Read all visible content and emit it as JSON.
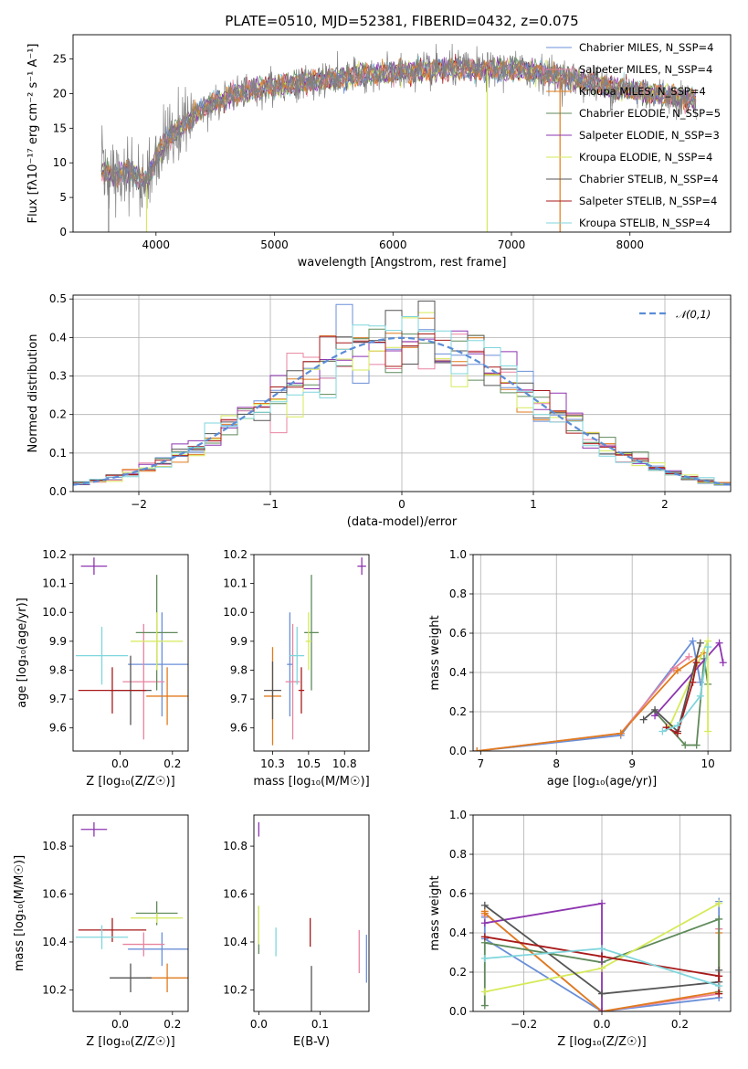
{
  "colors": [
    "#6a8fd8",
    "#e884a0",
    "#e07b1d",
    "#5f8a5a",
    "#8e35b0",
    "#d6ea5a",
    "#555555",
    "#a81a1a",
    "#7fd6dc"
  ],
  "chart_data": [
    {
      "id": "spectrum",
      "type": "line",
      "title": "PLATE=0510, MJD=52381, FIBERID=0432, z=0.075",
      "xlabel": "wavelength [Angstrom, rest frame]",
      "ylabel": "Flux [fλ10⁻¹⁷ erg cm⁻² s⁻¹ A⁻¹]",
      "xlim": [
        3300,
        8850
      ],
      "ylim": [
        0,
        28.5
      ],
      "xticks": [
        4000,
        5000,
        6000,
        7000,
        8000
      ],
      "yticks": [
        0,
        5,
        10,
        15,
        20,
        25
      ],
      "observed_color": "#808080",
      "legend_position": "right",
      "legend": [
        "Chabrier MILES, N_SSP=4",
        "Salpeter MILES, N_SSP=4",
        "Kroupa MILES, N_SSP=4",
        "Chabrier ELODIE, N_SSP=5",
        "Salpeter ELODIE, N_SSP=3",
        "Kroupa ELODIE, N_SSP=4",
        "Chabrier STELIB, N_SSP=4",
        "Salpeter STELIB, N_SSP=4",
        "Kroupa STELIB, N_SSP=4"
      ],
      "continuum": [
        [
          3540,
          9
        ],
        [
          3650,
          8
        ],
        [
          3750,
          9
        ],
        [
          3850,
          8
        ],
        [
          3920,
          7
        ],
        [
          4000,
          11
        ],
        [
          4100,
          13.5
        ],
        [
          4200,
          15
        ],
        [
          4300,
          16.5
        ],
        [
          4400,
          18
        ],
        [
          4600,
          19.5
        ],
        [
          4800,
          20.5
        ],
        [
          5000,
          21
        ],
        [
          5200,
          21.5
        ],
        [
          5400,
          22
        ],
        [
          5600,
          22.3
        ],
        [
          5800,
          22.8
        ],
        [
          6000,
          23
        ],
        [
          6200,
          23.2
        ],
        [
          6400,
          23.5
        ],
        [
          6600,
          23.6
        ],
        [
          6800,
          23.3
        ],
        [
          7000,
          23.5
        ],
        [
          7200,
          23.2
        ],
        [
          7400,
          22.5
        ],
        [
          7600,
          21.8
        ],
        [
          7800,
          21
        ],
        [
          8000,
          20.5
        ],
        [
          8200,
          20
        ],
        [
          8400,
          19.5
        ],
        [
          8560,
          19
        ]
      ]
    },
    {
      "id": "residuals",
      "type": "histogram",
      "xlabel": "(data-model)/error",
      "ylabel": "Normed distribution",
      "xlim": [
        -2.5,
        2.5
      ],
      "ylim": [
        0,
        0.51
      ],
      "xticks": [
        -2,
        -1,
        0,
        1,
        2
      ],
      "yticks": [
        0.0,
        0.1,
        0.2,
        0.3,
        0.4,
        0.5
      ],
      "bins": 40,
      "bin_width": 0.125,
      "grid": true,
      "legend": "𝒩(0,1)",
      "legend_position": "top-right",
      "gaussian_color": "#5b8dd6"
    },
    {
      "id": "age-vs-z",
      "type": "errorbar",
      "xlabel": "Z [log₁₀(Z/Z☉)]",
      "ylabel": "age  [log₁₀(age/yr)]",
      "xlim": [
        -0.18,
        0.26
      ],
      "ylim": [
        9.52,
        10.2
      ],
      "xticks": [
        0.0,
        0.2
      ],
      "yticks": [
        9.6,
        9.7,
        9.8,
        9.9,
        10.0,
        10.1,
        10.2
      ],
      "points": [
        {
          "x": 0.16,
          "y": 9.82,
          "xerr": 0.13,
          "yerr": 0.18,
          "c": 0
        },
        {
          "x": 0.09,
          "y": 9.76,
          "xerr": 0.08,
          "yerr": 0.2,
          "c": 1
        },
        {
          "x": 0.18,
          "y": 9.71,
          "xerr": 0.08,
          "yerr": 0.1,
          "c": 2
        },
        {
          "x": 0.14,
          "y": 9.93,
          "xerr": 0.08,
          "yerr": 0.2,
          "c": 3
        },
        {
          "x": -0.1,
          "y": 10.16,
          "xerr": 0.05,
          "yerr": 0.03,
          "c": 4
        },
        {
          "x": 0.14,
          "y": 9.9,
          "xerr": 0.1,
          "yerr": 0.1,
          "c": 5
        },
        {
          "x": 0.04,
          "y": 9.73,
          "xerr": 0.08,
          "yerr": 0.12,
          "c": 6
        },
        {
          "x": -0.03,
          "y": 9.73,
          "xerr": 0.13,
          "yerr": 0.08,
          "c": 7
        },
        {
          "x": -0.07,
          "y": 9.85,
          "xerr": 0.1,
          "yerr": 0.1,
          "c": 8
        }
      ]
    },
    {
      "id": "age-vs-mass",
      "type": "errorbar",
      "xlabel": "mass [log₁₀(M/M☉)]",
      "ylabel": "",
      "xlim": [
        10.12,
        10.92
      ],
      "ylim": [
        9.52,
        10.2
      ],
      "xticks": [
        10.25,
        10.5,
        10.75
      ],
      "yticks": [
        9.6,
        9.7,
        9.8,
        9.9,
        10.0,
        10.1,
        10.2
      ],
      "points": [
        {
          "x": 10.37,
          "y": 9.82,
          "xerr": 0.02,
          "yerr": 0.18,
          "c": 0
        },
        {
          "x": 10.39,
          "y": 9.76,
          "xerr": 0.05,
          "yerr": 0.2,
          "c": 1
        },
        {
          "x": 10.25,
          "y": 9.71,
          "xerr": 0.06,
          "yerr": 0.17,
          "c": 2
        },
        {
          "x": 10.52,
          "y": 9.93,
          "xerr": 0.05,
          "yerr": 0.2,
          "c": 3
        },
        {
          "x": 10.87,
          "y": 10.16,
          "xerr": 0.03,
          "yerr": 0.03,
          "c": 4
        },
        {
          "x": 10.5,
          "y": 9.9,
          "xerr": 0.02,
          "yerr": 0.1,
          "c": 5
        },
        {
          "x": 10.25,
          "y": 9.73,
          "xerr": 0.06,
          "yerr": 0.1,
          "c": 6
        },
        {
          "x": 10.45,
          "y": 9.73,
          "xerr": 0.02,
          "yerr": 0.08,
          "c": 7
        },
        {
          "x": 10.42,
          "y": 9.85,
          "xerr": 0.05,
          "yerr": 0.1,
          "c": 8
        }
      ]
    },
    {
      "id": "mass-weight-vs-age",
      "type": "line",
      "xlabel": "age  [log₁₀(age/yr)]",
      "ylabel": "mass weight",
      "xlim": [
        6.9,
        10.3
      ],
      "ylim": [
        0,
        1.0
      ],
      "xticks": [
        7,
        8,
        9,
        10
      ],
      "yticks": [
        0.0,
        0.2,
        0.4,
        0.6,
        0.8,
        1.0
      ],
      "grid": true,
      "series": [
        {
          "c": 0,
          "points": [
            [
              6.95,
              0.0
            ],
            [
              8.85,
              0.08
            ],
            [
              9.8,
              0.56
            ],
            [
              9.9,
              0.35
            ]
          ]
        },
        {
          "c": 1,
          "points": [
            [
              6.95,
              0.0
            ],
            [
              8.85,
              0.09
            ],
            [
              9.55,
              0.42
            ],
            [
              9.75,
              0.48
            ]
          ]
        },
        {
          "c": 2,
          "points": [
            [
              6.95,
              0.0
            ],
            [
              8.85,
              0.09
            ],
            [
              9.6,
              0.41
            ],
            [
              9.95,
              0.5
            ]
          ]
        },
        {
          "c": 3,
          "points": [
            [
              9.3,
              0.2
            ],
            [
              9.7,
              0.03
            ],
            [
              9.85,
              0.03
            ],
            [
              9.95,
              0.47
            ],
            [
              10.0,
              0.34
            ]
          ]
        },
        {
          "c": 4,
          "points": [
            [
              9.3,
              0.18
            ],
            [
              10.15,
              0.55
            ],
            [
              10.2,
              0.45
            ]
          ]
        },
        {
          "c": 5,
          "points": [
            [
              9.5,
              0.13
            ],
            [
              10.0,
              0.56
            ],
            [
              10.0,
              0.1
            ]
          ]
        },
        {
          "c": 6,
          "points": [
            [
              9.15,
              0.16
            ],
            [
              9.3,
              0.21
            ],
            [
              9.6,
              0.1
            ],
            [
              9.9,
              0.55
            ]
          ]
        },
        {
          "c": 7,
          "points": [
            [
              9.45,
              0.12
            ],
            [
              9.6,
              0.09
            ],
            [
              9.8,
              0.35
            ],
            [
              9.85,
              0.45
            ]
          ]
        },
        {
          "c": 8,
          "points": [
            [
              9.4,
              0.1
            ],
            [
              9.6,
              0.13
            ],
            [
              9.9,
              0.28
            ],
            [
              10.0,
              0.53
            ]
          ]
        }
      ]
    },
    {
      "id": "mass-vs-z",
      "type": "errorbar",
      "xlabel": "Z [log₁₀(Z/Z☉)]",
      "ylabel": "mass [log₁₀(M/M☉)]",
      "xlim": [
        -0.18,
        0.26
      ],
      "ylim": [
        10.11,
        10.93
      ],
      "xticks": [
        0.0,
        0.2
      ],
      "yticks": [
        10.2,
        10.4,
        10.6,
        10.8
      ],
      "points": [
        {
          "x": 0.16,
          "y": 10.37,
          "xerr": 0.13,
          "yerr": 0.07,
          "c": 0
        },
        {
          "x": 0.09,
          "y": 10.39,
          "xerr": 0.08,
          "yerr": 0.05,
          "c": 1
        },
        {
          "x": 0.18,
          "y": 10.25,
          "xerr": 0.08,
          "yerr": 0.06,
          "c": 2
        },
        {
          "x": 0.14,
          "y": 10.52,
          "xerr": 0.08,
          "yerr": 0.05,
          "c": 3
        },
        {
          "x": -0.1,
          "y": 10.87,
          "xerr": 0.05,
          "yerr": 0.03,
          "c": 4
        },
        {
          "x": 0.14,
          "y": 10.5,
          "xerr": 0.1,
          "yerr": 0.02,
          "c": 5
        },
        {
          "x": 0.04,
          "y": 10.25,
          "xerr": 0.08,
          "yerr": 0.06,
          "c": 6
        },
        {
          "x": -0.03,
          "y": 10.45,
          "xerr": 0.13,
          "yerr": 0.05,
          "c": 7
        },
        {
          "x": -0.07,
          "y": 10.42,
          "xerr": 0.1,
          "yerr": 0.05,
          "c": 8
        }
      ]
    },
    {
      "id": "mass-vs-ebv",
      "type": "errorbar",
      "xlabel": "E(B-V)",
      "ylabel": "",
      "xlim": [
        -0.004,
        0.09
      ],
      "ylim": [
        10.11,
        10.93
      ],
      "xticks": [
        0.0,
        0.05
      ],
      "yticks": [
        10.2,
        10.4,
        10.6,
        10.8
      ],
      "points": [
        {
          "x": 0.088,
          "y": 10.33,
          "xerr": 0.0,
          "yerr": 0.1,
          "c": 0
        },
        {
          "x": 0.082,
          "y": 10.36,
          "xerr": 0.0,
          "yerr": 0.09,
          "c": 1
        },
        {
          "x": 0.0,
          "y": 10.45,
          "xerr": 0.0,
          "yerr": 0.1,
          "c": 3
        },
        {
          "x": 0.0,
          "y": 10.87,
          "xerr": 0.0,
          "yerr": 0.03,
          "c": 4
        },
        {
          "x": 0.0,
          "y": 10.47,
          "xerr": 0.0,
          "yerr": 0.08,
          "c": 5
        },
        {
          "x": 0.043,
          "y": 10.2,
          "xerr": 0.0,
          "yerr": 0.1,
          "c": 6
        },
        {
          "x": 0.042,
          "y": 10.44,
          "xerr": 0.0,
          "yerr": 0.06,
          "c": 7
        },
        {
          "x": 0.014,
          "y": 10.4,
          "xerr": 0.0,
          "yerr": 0.06,
          "c": 8
        }
      ]
    },
    {
      "id": "mass-weight-vs-z",
      "type": "line",
      "xlabel": "Z [log₁₀(Z/Z☉)]",
      "ylabel": "mass weight",
      "xlim": [
        -0.33,
        0.33
      ],
      "ylim": [
        0,
        1.0
      ],
      "xticks": [
        -0.2,
        0.0,
        0.2
      ],
      "yticks": [
        0.0,
        0.2,
        0.4,
        0.6,
        0.8,
        1.0
      ],
      "grid": true,
      "series": [
        {
          "c": 0,
          "points": [
            [
              -0.3,
              0.48
            ],
            [
              -0.3,
              0.37
            ],
            [
              0.0,
              0.0
            ],
            [
              0.3,
              0.07
            ],
            [
              0.3,
              0.56
            ]
          ]
        },
        {
          "c": 1,
          "points": [
            [
              -0.3,
              0.49
            ],
            [
              -0.3,
              0.5
            ],
            [
              0.0,
              0.0
            ],
            [
              0.3,
              0.09
            ],
            [
              0.3,
              0.42
            ]
          ]
        },
        {
          "c": 2,
          "points": [
            [
              -0.3,
              0.51
            ],
            [
              -0.3,
              0.5
            ],
            [
              0.0,
              0.0
            ],
            [
              0.3,
              0.1
            ],
            [
              0.3,
              0.4
            ]
          ]
        },
        {
          "c": 3,
          "points": [
            [
              -0.3,
              0.03
            ],
            [
              -0.3,
              0.35
            ],
            [
              0.0,
              0.25
            ],
            [
              0.3,
              0.47
            ],
            [
              0.3,
              0.1
            ]
          ]
        },
        {
          "c": 4,
          "points": [
            [
              -0.3,
              0.45
            ],
            [
              0.0,
              0.55
            ],
            [
              0.0,
              0.0
            ]
          ]
        },
        {
          "c": 5,
          "points": [
            [
              -0.3,
              0.1
            ],
            [
              0.0,
              0.22
            ],
            [
              0.3,
              0.55
            ]
          ]
        },
        {
          "c": 6,
          "points": [
            [
              -0.3,
              0.54
            ],
            [
              0.0,
              0.09
            ],
            [
              0.3,
              0.15
            ],
            [
              0.3,
              0.21
            ]
          ]
        },
        {
          "c": 7,
          "points": [
            [
              -0.3,
              0.38
            ],
            [
              0.0,
              0.28
            ],
            [
              0.3,
              0.18
            ],
            [
              0.3,
              0.09
            ]
          ]
        },
        {
          "c": 8,
          "points": [
            [
              -0.3,
              0.27
            ],
            [
              0.0,
              0.32
            ],
            [
              0.3,
              0.13
            ]
          ]
        }
      ]
    }
  ]
}
